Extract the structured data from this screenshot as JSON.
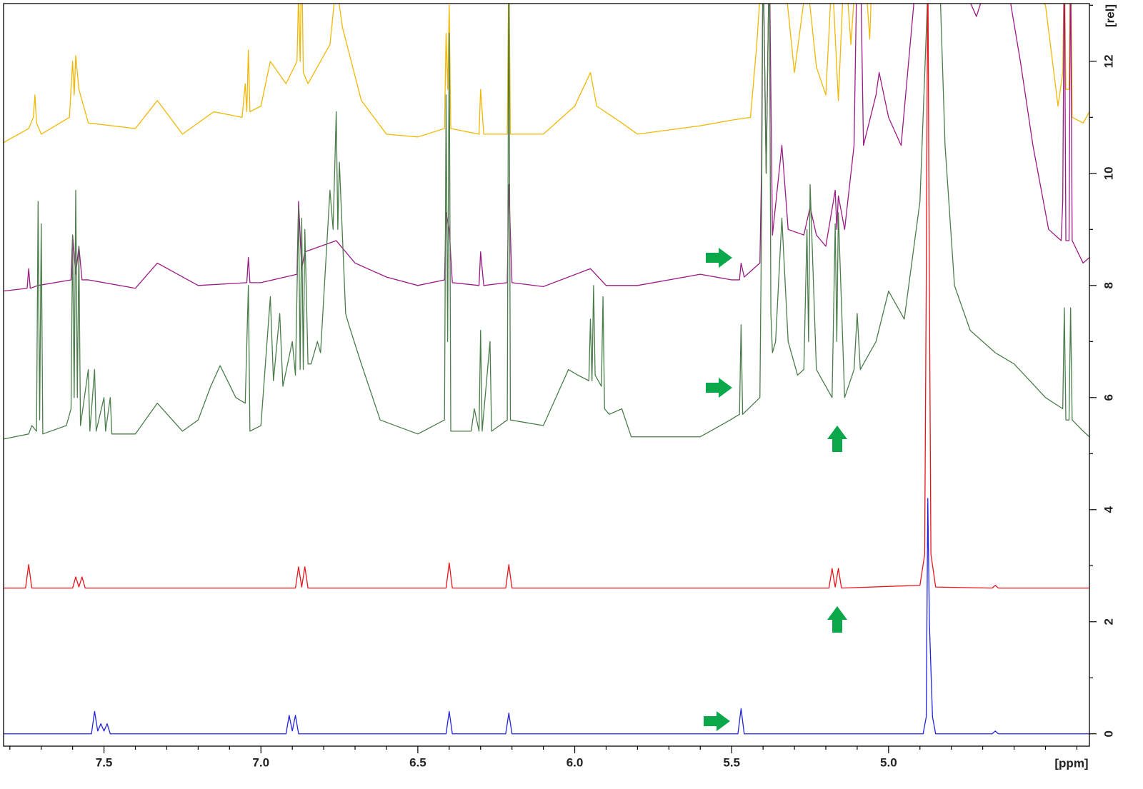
{
  "chart_data": {
    "type": "line",
    "xlabel": "[ppm]",
    "ylabel": "[rel]",
    "xlim": [
      7.82,
      4.36
    ],
    "ylim": [
      -0.22,
      13.03
    ],
    "xticks": [
      7.5,
      {
        "value": 7,
        "label": "7.0"
      },
      6.5,
      {
        "value": 6,
        "label": "6.0"
      },
      5.5,
      {
        "value": 5,
        "label": "5.0"
      }
    ],
    "xminorticks": [
      7.8,
      7.7,
      7.6,
      7.4,
      7.3,
      7.2,
      7.1,
      6.9,
      6.8,
      6.7,
      6.6,
      6.4,
      6.3,
      6.2,
      6.1,
      5.9,
      5.8,
      5.7,
      5.6,
      5.4,
      5.3,
      5.2,
      5.1,
      4.9,
      4.8,
      4.7,
      4.6,
      4.5,
      4.4
    ],
    "yticks": [
      0,
      2,
      4,
      6,
      8,
      10,
      12
    ],
    "yminorticks": [
      1,
      3,
      5,
      7,
      9,
      11,
      13
    ],
    "series": [
      {
        "color": "#f2b705",
        "x": [
          7.82,
          7.74,
          7.725,
          7.72,
          7.715,
          7.7,
          7.61,
          7.6,
          7.595,
          7.59,
          7.58,
          7.55,
          7.4,
          7.33,
          7.25,
          7.15,
          7.06,
          7.05,
          7.045,
          7.04,
          7.035,
          7.0,
          6.97,
          6.92,
          6.885,
          6.88,
          6.875,
          6.87,
          6.865,
          6.85,
          6.78,
          6.76,
          6.74,
          6.68,
          6.6,
          6.5,
          6.415,
          6.41,
          6.405,
          6.4,
          6.395,
          6.305,
          6.3,
          6.29,
          6.215,
          6.21,
          6.205,
          6.1,
          6.0,
          5.95,
          5.93,
          5.85,
          5.8,
          5.6,
          5.5,
          5.44,
          5.42,
          5.4,
          5.38,
          5.37,
          5.34,
          5.3,
          5.26,
          5.23,
          5.2,
          5.18,
          5.16,
          5.14,
          5.12,
          5.1,
          5.08,
          5.06,
          5.05,
          4.9,
          4.7,
          4.64,
          4.5,
          4.46,
          4.445,
          4.44,
          4.435,
          4.425,
          4.42,
          4.415,
          4.38,
          4.36
        ],
        "values": [
          10.55,
          10.8,
          11.0,
          11.4,
          10.9,
          10.7,
          11.0,
          12.0,
          11.4,
          12.1,
          11.5,
          10.9,
          10.8,
          11.3,
          10.7,
          11.1,
          11.0,
          11.6,
          11.1,
          12.2,
          11.1,
          11.2,
          12.0,
          11.6,
          12.0,
          13.2,
          12.0,
          14,
          11.8,
          11.6,
          12.3,
          13.4,
          12.6,
          11.3,
          10.7,
          10.65,
          10.8,
          12.5,
          11.5,
          13.0,
          10.8,
          10.7,
          11.5,
          10.7,
          10.7,
          14,
          10.7,
          10.7,
          11.2,
          11.8,
          11.2,
          10.9,
          10.7,
          10.85,
          10.95,
          11.0,
          12.3,
          14,
          14,
          13.3,
          14,
          11.8,
          13.5,
          11.9,
          11.4,
          13.6,
          11.3,
          13.9,
          12.3,
          14,
          14,
          12.4,
          14,
          14,
          14,
          14,
          13.0,
          11.2,
          11.8,
          14,
          11.5,
          11.5,
          14,
          11.0,
          10.9,
          11.1
        ]
      },
      {
        "color": "#9b1a86",
        "x": [
          7.82,
          7.745,
          7.74,
          7.735,
          7.71,
          7.605,
          7.6,
          7.59,
          7.58,
          7.57,
          7.55,
          7.4,
          7.33,
          7.2,
          7.045,
          7.04,
          7.035,
          7.0,
          6.885,
          6.88,
          6.87,
          6.86,
          6.76,
          6.7,
          6.6,
          6.5,
          6.415,
          6.41,
          6.4,
          6.39,
          6.305,
          6.3,
          6.29,
          6.215,
          6.21,
          6.2,
          6.1,
          5.95,
          5.9,
          5.8,
          5.6,
          5.5,
          5.475,
          5.47,
          5.46,
          5.41,
          5.405,
          5.4,
          5.39,
          5.38,
          5.37,
          5.34,
          5.32,
          5.27,
          5.25,
          5.23,
          5.2,
          5.17,
          5.165,
          5.16,
          5.14,
          5.11,
          5.1,
          5.09,
          5.08,
          5.04,
          5.03,
          5.0,
          4.96,
          4.92,
          4.91,
          4.79,
          4.76,
          4.72,
          4.68,
          4.64,
          4.58,
          4.54,
          4.49,
          4.45,
          4.445,
          4.44,
          4.435,
          4.425,
          4.42,
          4.415,
          4.38,
          4.36
        ],
        "values": [
          7.9,
          7.95,
          8.3,
          7.95,
          8.0,
          8.1,
          8.9,
          8.2,
          8.7,
          8.1,
          8.1,
          7.95,
          8.4,
          8.0,
          8.05,
          8.5,
          8.05,
          8.05,
          8.2,
          9.5,
          8.3,
          8.6,
          8.8,
          8.4,
          8.15,
          8.0,
          8.1,
          9.3,
          9.0,
          8.05,
          8.0,
          8.6,
          8.0,
          8.05,
          9.8,
          8.05,
          7.98,
          8.3,
          8.0,
          8.0,
          8.2,
          8.1,
          8.1,
          8.4,
          8.15,
          8.4,
          10,
          14,
          10,
          14,
          8.9,
          10.5,
          9.0,
          8.9,
          9.4,
          8.9,
          8.7,
          9.7,
          9.0,
          9.6,
          9.0,
          10.5,
          14,
          14,
          10.5,
          11.4,
          11.8,
          11.0,
          10.5,
          13.0,
          14,
          14,
          13.3,
          12.8,
          13.5,
          14,
          12,
          10.5,
          9.0,
          8.8,
          9.5,
          14,
          8.8,
          8.8,
          14,
          8.8,
          8.4,
          8.5
        ]
      },
      {
        "color": "#4a7d4a",
        "x": [
          7.82,
          7.74,
          7.73,
          7.715,
          7.71,
          7.705,
          7.7,
          7.695,
          7.62,
          7.605,
          7.6,
          7.595,
          7.59,
          7.585,
          7.58,
          7.575,
          7.55,
          7.545,
          7.53,
          7.525,
          7.5,
          7.495,
          7.48,
          7.475,
          7.4,
          7.33,
          7.25,
          7.2,
          7.16,
          7.13,
          7.08,
          7.05,
          7.04,
          7.035,
          7.0,
          6.97,
          6.96,
          6.94,
          6.93,
          6.9,
          6.89,
          6.88,
          6.875,
          6.87,
          6.865,
          6.86,
          6.85,
          6.84,
          6.82,
          6.81,
          6.78,
          6.77,
          6.76,
          6.755,
          6.75,
          6.73,
          6.72,
          6.68,
          6.62,
          6.5,
          6.415,
          6.41,
          6.405,
          6.4,
          6.395,
          6.33,
          6.32,
          6.305,
          6.3,
          6.295,
          6.27,
          6.265,
          6.215,
          6.21,
          6.205,
          6.1,
          6.02,
          5.99,
          5.955,
          5.95,
          5.945,
          5.94,
          5.935,
          5.915,
          5.91,
          5.905,
          5.89,
          5.85,
          5.82,
          5.6,
          5.52,
          5.475,
          5.47,
          5.465,
          5.41,
          5.405,
          5.4,
          5.39,
          5.38,
          5.375,
          5.37,
          5.36,
          5.34,
          5.32,
          5.29,
          5.27,
          5.26,
          5.255,
          5.25,
          5.23,
          5.2,
          5.18,
          5.17,
          5.165,
          5.16,
          5.14,
          5.11,
          5.1,
          5.09,
          5.04,
          5.0,
          4.97,
          4.95,
          4.9,
          4.87,
          4.84,
          4.82,
          4.79,
          4.74,
          4.66,
          4.6,
          4.55,
          4.5,
          4.445,
          4.44,
          4.435,
          4.425,
          4.42,
          4.415,
          4.38,
          4.36
        ],
        "values": [
          5.26,
          5.35,
          5.5,
          5.4,
          9.5,
          5.6,
          9.1,
          5.35,
          5.5,
          5.8,
          8.9,
          6.0,
          9.7,
          6.0,
          8.7,
          5.5,
          6.5,
          5.4,
          6.5,
          5.4,
          6.0,
          5.4,
          6.0,
          5.35,
          5.35,
          5.9,
          5.4,
          5.6,
          6.2,
          6.57,
          6.0,
          5.9,
          8.0,
          5.4,
          5.5,
          7.8,
          6.3,
          7.5,
          6.2,
          7.0,
          6.4,
          9.4,
          6.5,
          9.2,
          6.5,
          9.0,
          6.6,
          6.6,
          7.0,
          6.8,
          9.7,
          9.0,
          11.1,
          9.0,
          10.2,
          7.5,
          7.3,
          6.6,
          5.6,
          5.35,
          5.6,
          11.4,
          7.0,
          12.5,
          5.4,
          5.4,
          5.8,
          5.4,
          7.2,
          5.4,
          7.0,
          5.4,
          5.6,
          14,
          5.6,
          5.5,
          6.5,
          6.4,
          6.3,
          7.4,
          6.3,
          8.0,
          6.4,
          6.2,
          7.8,
          5.8,
          5.7,
          5.8,
          5.3,
          5.3,
          5.55,
          5.7,
          7.3,
          5.7,
          6.0,
          9.0,
          14,
          10,
          14,
          7.5,
          6.8,
          7.0,
          9.2,
          7.0,
          6.4,
          6.5,
          9.0,
          7.0,
          9.8,
          6.5,
          6.2,
          6.0,
          9.1,
          7.0,
          9.3,
          6.0,
          6.5,
          7.5,
          6.5,
          7.0,
          7.9,
          7.6,
          7.4,
          9.5,
          14,
          14,
          10.5,
          8.0,
          7.2,
          6.8,
          6.6,
          6.3,
          6.0,
          5.8,
          7.6,
          5.6,
          5.6,
          7.6,
          5.6,
          5.4,
          5.3
        ]
      },
      {
        "color": "#e8141c",
        "x": [
          7.82,
          7.75,
          7.74,
          7.73,
          7.6,
          7.59,
          7.58,
          7.57,
          7.56,
          6.89,
          6.88,
          6.87,
          6.86,
          6.85,
          6.41,
          6.4,
          6.39,
          6.22,
          6.21,
          6.2,
          5.19,
          5.18,
          5.17,
          5.16,
          5.15,
          4.9,
          4.885,
          4.88,
          4.875,
          4.87,
          4.865,
          4.85,
          4.67,
          4.66,
          4.65,
          4.36
        ],
        "values": [
          2.6,
          2.6,
          3.02,
          2.6,
          2.6,
          2.8,
          2.62,
          2.8,
          2.6,
          2.6,
          2.98,
          2.62,
          2.98,
          2.6,
          2.6,
          3.05,
          2.6,
          2.6,
          3.02,
          2.6,
          2.6,
          2.95,
          2.62,
          2.95,
          2.6,
          2.65,
          3.2,
          8,
          14,
          8,
          3.2,
          2.62,
          2.6,
          2.65,
          2.6,
          2.6
        ]
      },
      {
        "color": "#2323dc",
        "x": [
          7.82,
          7.54,
          7.53,
          7.52,
          7.51,
          7.5,
          7.49,
          7.48,
          6.92,
          6.91,
          6.9,
          6.89,
          6.88,
          6.41,
          6.4,
          6.39,
          6.22,
          6.21,
          6.2,
          5.48,
          5.47,
          5.46,
          4.89,
          4.88,
          4.875,
          4.87,
          4.86,
          4.85,
          4.67,
          4.66,
          4.65,
          4.36
        ],
        "values": [
          0,
          0,
          0.4,
          0.05,
          0.18,
          0.05,
          0.18,
          0,
          0,
          0.33,
          0.05,
          0.33,
          0,
          0,
          0.4,
          0,
          0,
          0.37,
          0,
          0,
          0.45,
          0,
          0,
          0.3,
          4.2,
          2.0,
          0.3,
          0,
          0,
          0.05,
          0,
          0
        ]
      }
    ]
  }
}
